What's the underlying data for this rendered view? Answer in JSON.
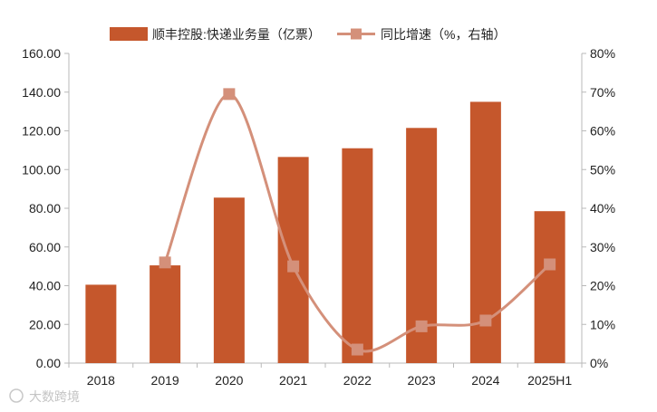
{
  "chart_data": {
    "type": "bar+line",
    "categories": [
      "2018",
      "2019",
      "2020",
      "2021",
      "2022",
      "2023",
      "2024",
      "2025H1"
    ],
    "series": [
      {
        "name": "顺丰控股:快递业务量（亿票）",
        "kind": "bar",
        "axis": "left",
        "color": "#C5572C",
        "values": [
          40.5,
          50.5,
          85.5,
          106.5,
          111,
          121.5,
          135,
          78.5
        ]
      },
      {
        "name": "同比增速（%，右轴）",
        "kind": "line",
        "axis": "right",
        "color": "#D4907A",
        "marker": "square",
        "values": [
          null,
          26,
          69.5,
          25,
          3.5,
          9.5,
          11,
          25.5
        ]
      }
    ],
    "y_left": {
      "min": 0,
      "max": 160,
      "step": 20,
      "ticks": [
        "0.00",
        "20.00",
        "40.00",
        "60.00",
        "80.00",
        "100.00",
        "120.00",
        "140.00",
        "160.00"
      ]
    },
    "y_right": {
      "min": 0,
      "max": 80,
      "step": 10,
      "ticks": [
        "0%",
        "10%",
        "20%",
        "30%",
        "40%",
        "50%",
        "60%",
        "70%",
        "80%"
      ]
    },
    "legend_position": "top-center",
    "grid": false,
    "watermark": "大数跨境"
  }
}
